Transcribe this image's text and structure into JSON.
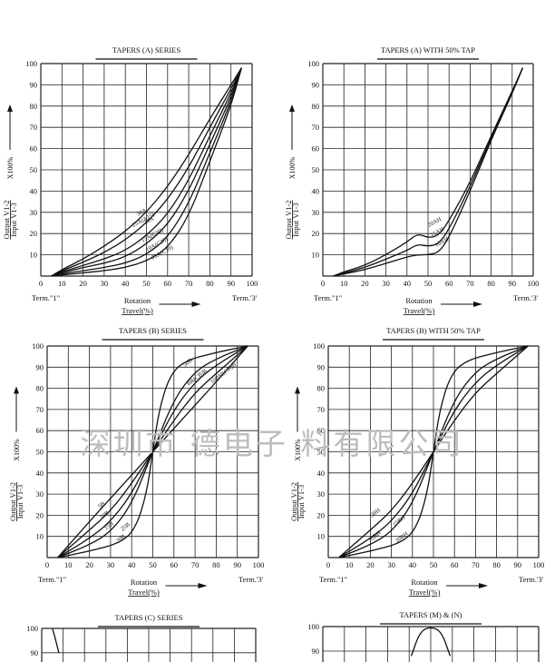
{
  "watermark": "深圳市 德电子 料有限公司",
  "common": {
    "ylabel_output": "Output V1-2",
    "ylabel_input": "Input V1-3",
    "ylabel_scale": "X100%",
    "xlabel_top": "Rotation",
    "xlabel_bottom": "Travel(%)",
    "term1": "Term.\"1\"",
    "term3": "Term.'3'"
  },
  "chart_data": [
    {
      "type": "line",
      "title": "TAPERS (A) SERIES",
      "xlim": [
        0,
        100
      ],
      "ylim": [
        0,
        100
      ],
      "xticks": [
        0,
        10,
        20,
        30,
        40,
        50,
        60,
        70,
        80,
        90,
        100
      ],
      "yticks": [
        10,
        20,
        30,
        40,
        50,
        60,
        70,
        80,
        90,
        100
      ],
      "grid": true,
      "series": [
        {
          "name": "30A",
          "x": [
            5,
            10,
            20,
            30,
            40,
            50,
            60,
            70,
            80,
            90,
            95
          ],
          "y": [
            0,
            3,
            8,
            14,
            21,
            30,
            42,
            57,
            74,
            90,
            98
          ]
        },
        {
          "name": "25A(A15)",
          "x": [
            5,
            10,
            20,
            30,
            40,
            50,
            60,
            70,
            80,
            90,
            95
          ],
          "y": [
            0,
            2.5,
            6.5,
            11,
            17,
            25,
            36,
            51,
            70,
            88,
            98
          ]
        },
        {
          "name": "20A",
          "x": [
            5,
            10,
            20,
            30,
            40,
            50,
            60,
            70,
            80,
            90,
            95
          ],
          "y": [
            0,
            2,
            5,
            8,
            12,
            19,
            29,
            45,
            66,
            86,
            98
          ]
        },
        {
          "name": "15A(C30)",
          "x": [
            5,
            10,
            20,
            30,
            40,
            50,
            60,
            70,
            80,
            90,
            95
          ],
          "y": [
            0,
            1.5,
            4,
            6,
            9,
            15,
            24,
            40,
            62,
            84,
            98
          ]
        },
        {
          "name": "10A(C20)",
          "x": [
            5,
            10,
            20,
            30,
            40,
            50,
            60,
            70,
            80,
            90,
            95
          ],
          "y": [
            0,
            1,
            2.5,
            4,
            6,
            10,
            18,
            34,
            58,
            82,
            98
          ]
        },
        {
          "name": "05A(C10)",
          "x": [
            5,
            10,
            20,
            30,
            40,
            50,
            60,
            70,
            80,
            90,
            95
          ],
          "y": [
            0,
            0.5,
            1.5,
            2.5,
            4,
            7,
            13,
            28,
            54,
            80,
            98
          ]
        }
      ],
      "annotations": [
        "30A",
        "25A(A15)",
        "20A",
        "15A(C30)",
        "10A(C20)",
        "05A(C10)"
      ]
    },
    {
      "type": "line",
      "title": "TAPERS (A) WITH 50% TAP",
      "xlim": [
        0,
        100
      ],
      "ylim": [
        0,
        100
      ],
      "xticks": [
        0,
        10,
        20,
        30,
        40,
        50,
        60,
        70,
        80,
        90,
        100
      ],
      "yticks": [
        10,
        20,
        30,
        40,
        50,
        60,
        70,
        80,
        90,
        100
      ],
      "grid": true,
      "series": [
        {
          "name": "20AH",
          "x": [
            5,
            10,
            20,
            30,
            40,
            45,
            50,
            55,
            60,
            70,
            80,
            90,
            95
          ],
          "y": [
            0,
            2,
            5,
            10,
            16,
            20,
            18,
            19,
            26,
            44,
            66,
            87,
            98
          ]
        },
        {
          "name": "15AH",
          "x": [
            5,
            10,
            20,
            30,
            40,
            45,
            50,
            55,
            60,
            70,
            80,
            90,
            95
          ],
          "y": [
            0,
            1.5,
            4,
            8,
            12,
            15,
            14,
            15,
            22,
            42,
            65,
            86,
            98
          ]
        },
        {
          "name": "10AH",
          "x": [
            5,
            10,
            20,
            30,
            40,
            45,
            50,
            55,
            60,
            70,
            80,
            90,
            95
          ],
          "y": [
            0,
            1,
            3,
            6,
            9,
            10,
            10,
            11,
            18,
            40,
            64,
            86,
            98
          ]
        }
      ],
      "annotations": [
        "20AH",
        "15AH",
        "10AH"
      ]
    },
    {
      "type": "line",
      "title": "TAPERS (B) SERIES",
      "xlim": [
        0,
        100
      ],
      "ylim": [
        0,
        100
      ],
      "xticks": [
        0,
        10,
        20,
        30,
        40,
        50,
        60,
        70,
        80,
        90,
        100
      ],
      "yticks": [
        10,
        20,
        30,
        40,
        50,
        60,
        70,
        80,
        90,
        100
      ],
      "grid": true,
      "series": [
        {
          "name": "5B",
          "x": [
            5,
            20,
            35,
            42,
            47,
            50,
            53,
            58,
            65,
            80,
            95
          ],
          "y": [
            0,
            3,
            7,
            14,
            30,
            50,
            70,
            86,
            93,
            97,
            100
          ]
        },
        {
          "name": "10B",
          "x": [
            5,
            20,
            30,
            40,
            50,
            60,
            70,
            80,
            95
          ],
          "y": [
            0,
            6,
            12,
            25,
            50,
            75,
            88,
            94,
            100
          ]
        },
        {
          "name": "15B",
          "x": [
            5,
            20,
            30,
            40,
            50,
            60,
            70,
            80,
            95
          ],
          "y": [
            0,
            9,
            17,
            30,
            50,
            70,
            83,
            91,
            100
          ]
        },
        {
          "name": "20B",
          "x": [
            5,
            20,
            30,
            40,
            50,
            60,
            70,
            80,
            95
          ],
          "y": [
            0,
            13,
            22,
            35,
            50,
            65,
            78,
            87,
            100
          ]
        },
        {
          "name": "25B",
          "x": [
            5,
            20,
            30,
            40,
            50,
            60,
            70,
            80,
            95
          ],
          "y": [
            0,
            17,
            28,
            39,
            50,
            61,
            72,
            83,
            100
          ]
        }
      ],
      "annotations": [
        "5B",
        "10B",
        "15B",
        "20B",
        "25B",
        "50B",
        "BR(CB)B",
        "10BM(CB)B"
      ]
    },
    {
      "type": "line",
      "title": "TAPERS (B) WITH 50% TAP",
      "xlim": [
        0,
        100
      ],
      "ylim": [
        0,
        100
      ],
      "xticks": [
        0,
        10,
        20,
        30,
        40,
        50,
        60,
        70,
        80,
        90,
        100
      ],
      "yticks": [
        10,
        20,
        30,
        40,
        50,
        60,
        70,
        80,
        90,
        100
      ],
      "grid": true,
      "series": [
        {
          "name": "5BH",
          "x": [
            5,
            20,
            35,
            42,
            47,
            50,
            53,
            58,
            65,
            80,
            95
          ],
          "y": [
            0,
            3,
            7,
            14,
            30,
            50,
            70,
            86,
            93,
            97,
            100
          ]
        },
        {
          "name": "10BH",
          "x": [
            5,
            20,
            30,
            40,
            50,
            60,
            70,
            80,
            95
          ],
          "y": [
            0,
            6,
            12,
            25,
            50,
            75,
            88,
            94,
            100
          ]
        },
        {
          "name": "15BH",
          "x": [
            5,
            20,
            30,
            40,
            50,
            60,
            70,
            80,
            95
          ],
          "y": [
            0,
            9,
            17,
            30,
            50,
            70,
            83,
            91,
            100
          ]
        },
        {
          "name": "20BH",
          "x": [
            5,
            20,
            30,
            40,
            50,
            60,
            70,
            80,
            95
          ],
          "y": [
            0,
            13,
            22,
            35,
            50,
            65,
            78,
            87,
            100
          ]
        }
      ],
      "annotations": [
        "5BH",
        "10BH",
        "15BH",
        "20BH"
      ]
    },
    {
      "type": "line",
      "title": "TAPERS (C) SERIES",
      "xlim": [
        0,
        100
      ],
      "ylim": [
        0,
        100
      ],
      "yticks": [
        90,
        100
      ],
      "grid": true,
      "series": [
        {
          "name": "",
          "x": [
            5,
            6,
            8
          ],
          "y": [
            100,
            97,
            90
          ]
        }
      ]
    },
    {
      "type": "line",
      "title": "TAPERS (M) & (N)",
      "xlim": [
        0,
        100
      ],
      "ylim": [
        0,
        100
      ],
      "yticks": [
        90,
        100
      ],
      "grid": true,
      "series": [
        {
          "name": "",
          "x": [
            41,
            45,
            50,
            55,
            59
          ],
          "y": [
            88,
            98,
            100,
            98,
            88
          ]
        }
      ]
    }
  ]
}
